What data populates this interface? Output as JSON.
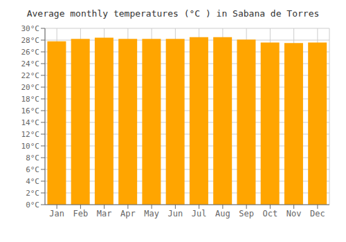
{
  "chart_data": {
    "type": "bar",
    "title": "Average monthly temperatures (°C ) in Sabana de Torres",
    "categories": [
      "Jan",
      "Feb",
      "Mar",
      "Apr",
      "May",
      "Jun",
      "Jul",
      "Aug",
      "Sep",
      "Oct",
      "Nov",
      "Dec"
    ],
    "values": [
      27.8,
      28.2,
      28.4,
      28.2,
      28.2,
      28.2,
      28.5,
      28.5,
      28.1,
      27.6,
      27.5,
      27.6
    ],
    "color": "#FFA500",
    "ylim": [
      0,
      30
    ],
    "yticks": [
      {
        "value": 0,
        "label": "0°C"
      },
      {
        "value": 2,
        "label": "2°C"
      },
      {
        "value": 4,
        "label": "4°C"
      },
      {
        "value": 6,
        "label": "6°C"
      },
      {
        "value": 8,
        "label": "8°C"
      },
      {
        "value": 10,
        "label": "10°C"
      },
      {
        "value": 12,
        "label": "12°C"
      },
      {
        "value": 14,
        "label": "14°C"
      },
      {
        "value": 16,
        "label": "16°C"
      },
      {
        "value": 18,
        "label": "18°C"
      },
      {
        "value": 20,
        "label": "20°C"
      },
      {
        "value": 22,
        "label": "22°C"
      },
      {
        "value": 24,
        "label": "24°C"
      },
      {
        "value": 26,
        "label": "26°C"
      },
      {
        "value": 28,
        "label": "28°C"
      },
      {
        "value": 30,
        "label": "30°C"
      }
    ],
    "grid": true
  }
}
